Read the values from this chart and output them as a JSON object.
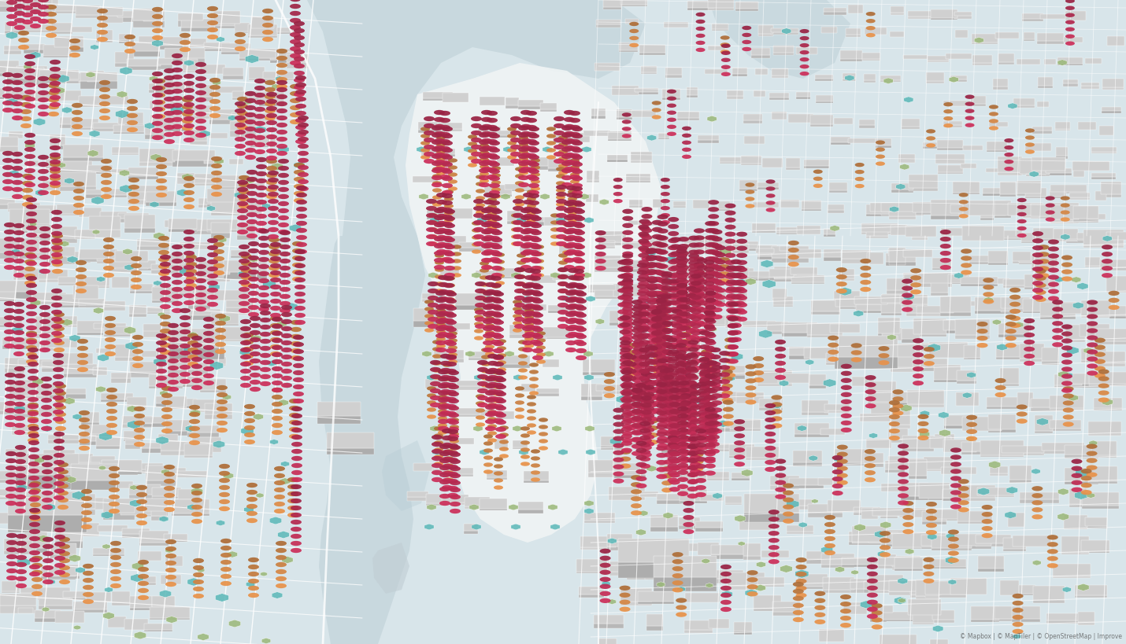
{
  "figsize": [
    14.3,
    8.19
  ],
  "dpi": 100,
  "bg_color": "#d8e5ea",
  "water_color": "#c8d8de",
  "land_color": "#f0f4f5",
  "water_dark": "#b8cdd5",
  "building_face": "#b8b8b8",
  "building_top": "#d0d0d0",
  "building_edge": "#ffffff",
  "road_color": "#ffffff",
  "marker_high": "#cc2f5a",
  "marker_med": "#e8924a",
  "marker_teal": "#5ab8b8",
  "marker_sage": "#9ab878",
  "marker_blue": "#6aa8c8"
}
